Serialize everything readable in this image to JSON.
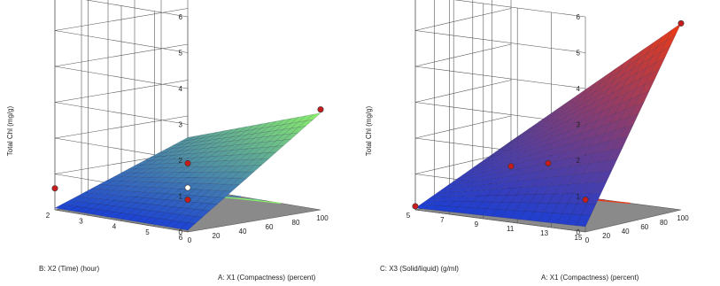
{
  "chart_data": [
    {
      "type": "surface",
      "zlabel": "Total Chl (mg/g)",
      "xlabel": "A: X1 (Compactness) (percent)",
      "ylabel": "B: X2 (Time) (hour)",
      "z_ticks": [
        "0",
        "1",
        "2",
        "3",
        "4",
        "5",
        "6"
      ],
      "x_ticks": [
        "0",
        "20",
        "40",
        "60",
        "80",
        "100"
      ],
      "y_ticks": [
        "2",
        "3",
        "4",
        "5",
        "6"
      ],
      "zlim": [
        0,
        6
      ],
      "xlim": [
        0,
        100
      ],
      "ylim": [
        2,
        6
      ],
      "surface_corners": {
        "x0_y2": 0.05,
        "x100_y2": 1.4,
        "x0_y6": 0.05,
        "x100_y6": 2.7
      },
      "design_points": [
        {
          "x": 100,
          "y": 2,
          "z": 0.0
        },
        {
          "x": 50,
          "y": 4,
          "z": 1.3
        },
        {
          "x": 100,
          "y": 6,
          "z": 2.8
        },
        {
          "x": 0,
          "y": 6,
          "z": 0.9
        },
        {
          "x": 0,
          "y": 2,
          "z": 0.6
        }
      ],
      "colors": {
        "low": "#1a3fd6",
        "high": "#8cf06a",
        "floor": "#8a8a8a"
      }
    },
    {
      "type": "surface",
      "zlabel": "Total Chl (mg/g)",
      "xlabel": "A: X1 (Compactness) (percent)",
      "ylabel": "C: X3 (Solid/liquid) (g/ml)",
      "z_ticks": [
        "0",
        "1",
        "2",
        "3",
        "4",
        "5",
        "6"
      ],
      "x_ticks": [
        "0",
        "20",
        "40",
        "60",
        "80",
        "100"
      ],
      "y_ticks": [
        "5",
        "7",
        "9",
        "11",
        "13",
        "15"
      ],
      "zlim": [
        0,
        6
      ],
      "xlim": [
        0,
        100
      ],
      "ylim": [
        5,
        15
      ],
      "surface_corners": {
        "x0_y5": 0.05,
        "x100_y5": 1.3,
        "x0_y15": 0.15,
        "x100_y15": 5.2
      },
      "design_points": [
        {
          "x": 100,
          "y": 15,
          "z": 5.2
        },
        {
          "x": 50,
          "y": 10,
          "z": 1.3
        },
        {
          "x": 0,
          "y": 15,
          "z": 0.9
        },
        {
          "x": 0,
          "y": 5,
          "z": 0.1
        },
        {
          "x": 100,
          "y": 5,
          "z": 0.6
        }
      ],
      "colors": {
        "low": "#1a3fd6",
        "high": "#ee3a12",
        "floor": "#8a8a8a"
      }
    }
  ]
}
